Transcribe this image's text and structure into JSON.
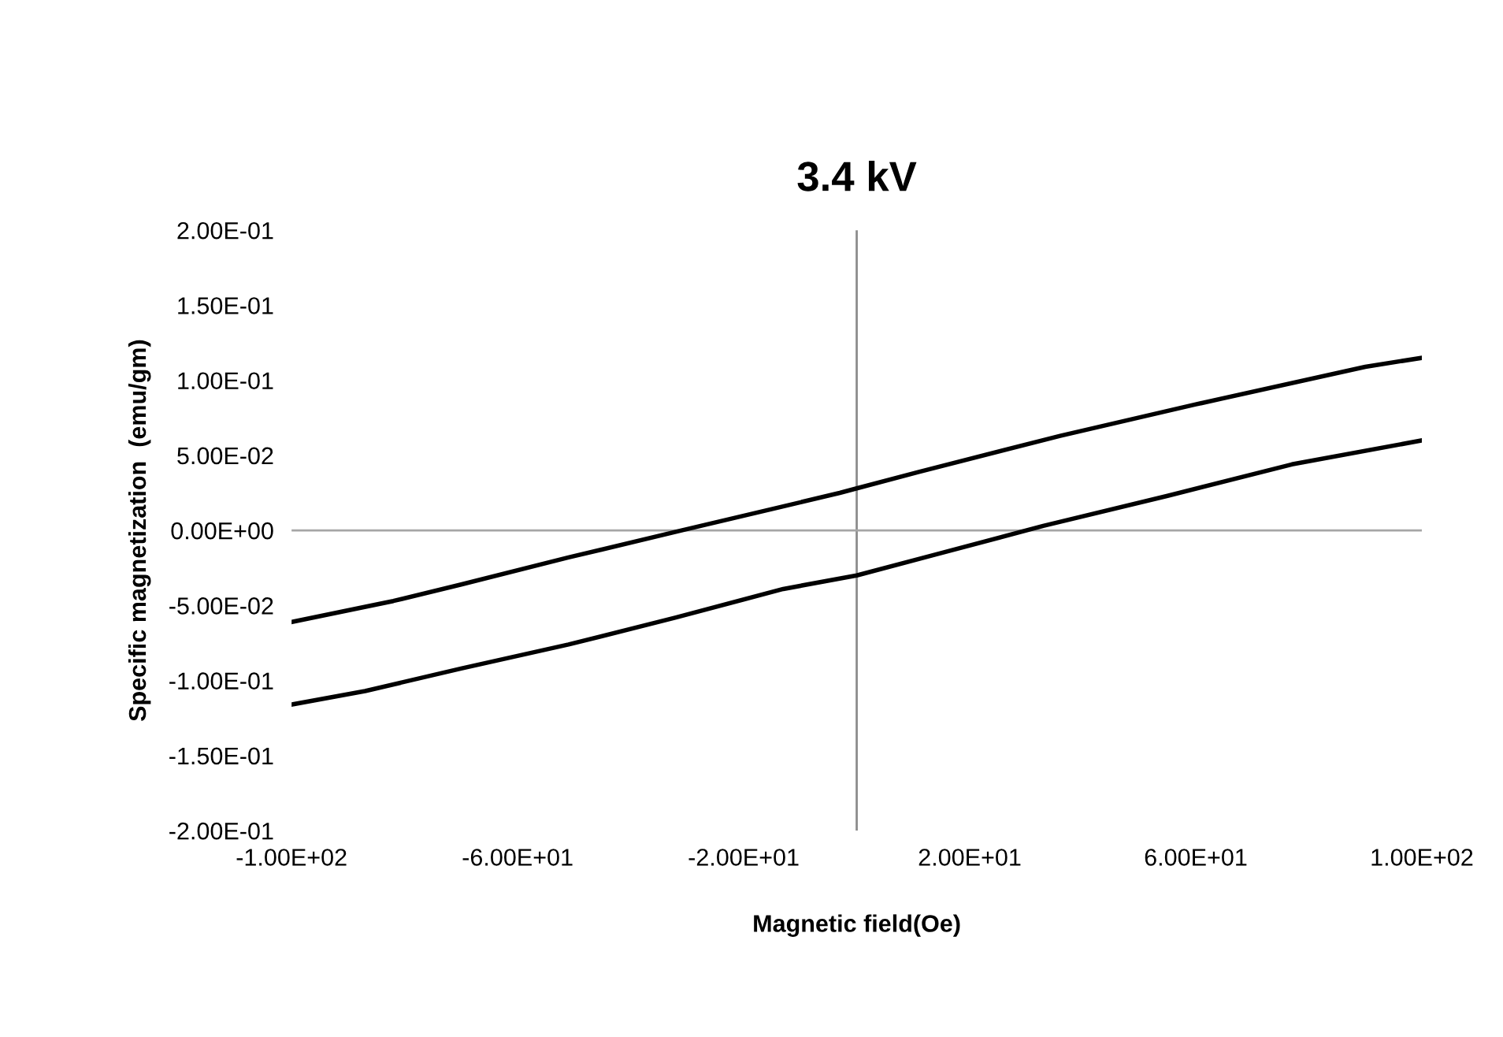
{
  "chart_data": {
    "type": "line",
    "title": "3.4 kV",
    "xlabel": "Magnetic field(Oe)",
    "ylabel": "Specific magnetization  (emu/gm)",
    "series": [
      {
        "color": "#000000",
        "x": [
          -100,
          -82,
          -70,
          -51,
          -31,
          -13,
          -3,
          0,
          11,
          36,
          60,
          90,
          100
        ],
        "values": [
          -0.061,
          -0.047,
          -0.036,
          -0.018,
          0.0,
          0.016,
          0.025,
          0.028,
          0.039,
          0.063,
          0.084,
          0.109,
          0.115
        ]
      },
      {
        "color": "#000000",
        "x": [
          -100,
          -87,
          -70,
          -51,
          -32,
          -13,
          0,
          14,
          33,
          55,
          77,
          100
        ],
        "values": [
          -0.116,
          -0.107,
          -0.092,
          -0.076,
          -0.058,
          -0.039,
          -0.03,
          -0.016,
          0.003,
          0.023,
          0.044,
          0.06
        ]
      }
    ],
    "xlim": [
      -100,
      100
    ],
    "ylim": [
      -0.2,
      0.2
    ],
    "xticks": [
      {
        "value": -100,
        "label": "-1.00E+02"
      },
      {
        "value": -60,
        "label": "-6.00E+01"
      },
      {
        "value": -20,
        "label": "-2.00E+01"
      },
      {
        "value": 20,
        "label": "2.00E+01"
      },
      {
        "value": 60,
        "label": "6.00E+01"
      },
      {
        "value": 100,
        "label": "1.00E+02"
      }
    ],
    "yticks": [
      {
        "value": -0.2,
        "label": "-2.00E-01"
      },
      {
        "value": -0.15,
        "label": "-1.50E-01"
      },
      {
        "value": -0.1,
        "label": "-1.00E-01"
      },
      {
        "value": -0.05,
        "label": "-5.00E-02"
      },
      {
        "value": 0,
        "label": "0.00E+00"
      },
      {
        "value": 0.05,
        "label": "5.00E-02"
      },
      {
        "value": 0.1,
        "label": "1.00E-01"
      },
      {
        "value": 0.15,
        "label": "1.50E-01"
      },
      {
        "value": 0.2,
        "label": "2.00E-01"
      }
    ],
    "ref_lines": [
      {
        "axis": "x",
        "value": 0,
        "color": "#8c8c8c"
      },
      {
        "axis": "y",
        "value": 0,
        "color": "#a6a6a6"
      }
    ],
    "marker": "none",
    "line_style": "solid"
  }
}
